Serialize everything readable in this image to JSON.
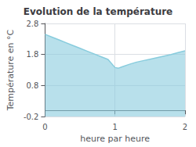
{
  "chart_data": {
    "type": "area",
    "title": "Evolution de la température",
    "xlabel": "heure par heure",
    "ylabel": "Température en °C",
    "x": [
      0,
      0.1,
      0.2,
      0.3,
      0.4,
      0.5,
      0.6,
      0.7,
      0.8,
      0.9,
      1.0,
      1.05,
      1.1,
      1.2,
      1.3,
      1.4,
      1.5,
      1.6,
      1.7,
      1.8,
      1.9,
      2.0
    ],
    "values": [
      2.45,
      2.36,
      2.27,
      2.18,
      2.09,
      2.0,
      1.91,
      1.82,
      1.73,
      1.64,
      1.38,
      1.36,
      1.4,
      1.48,
      1.55,
      1.6,
      1.65,
      1.7,
      1.75,
      1.8,
      1.86,
      1.92
    ],
    "color": "#88ccdd",
    "xlim": [
      0,
      2
    ],
    "xticks": [
      0,
      1,
      2
    ],
    "ylim": [
      -0.2,
      2.8
    ],
    "yticks": [
      -0.2,
      0.8,
      1.8,
      2.8
    ],
    "grid": true
  }
}
